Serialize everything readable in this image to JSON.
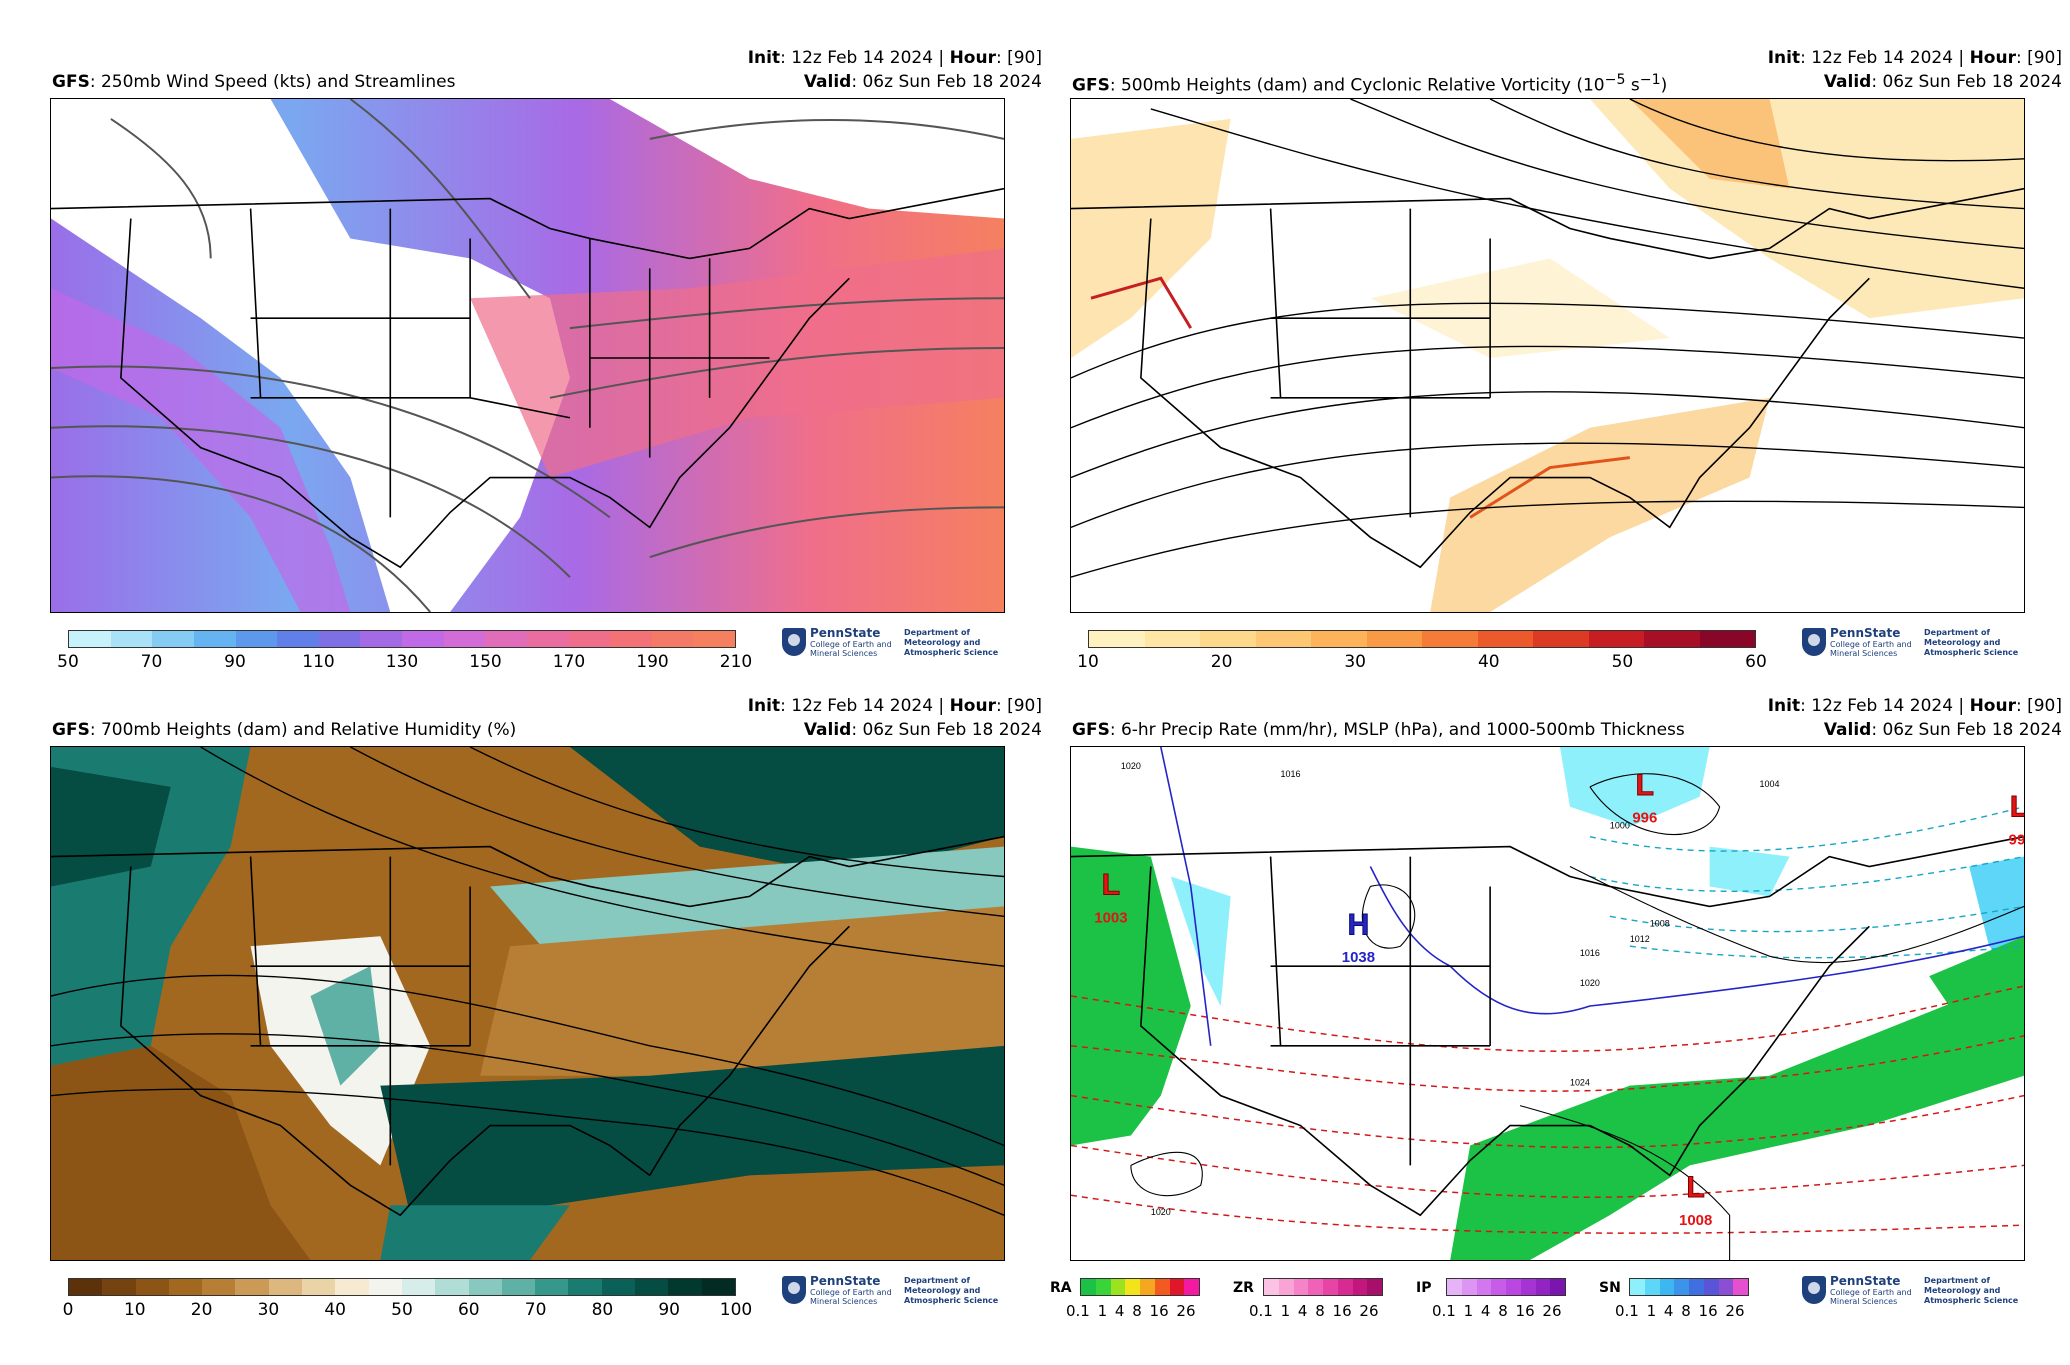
{
  "panels": [
    {
      "init_label": "Init",
      "init_value": ": 12z Feb 14 2024 | ",
      "hour_label": "Hour",
      "hour_value": ": [90]",
      "model": "GFS",
      "title": ": 250mb Wind Speed (kts) and Streamlines",
      "valid_label": "Valid",
      "valid_value": ": 06z Sun Feb 18 2024",
      "colorbar": {
        "colors": [
          "#c8f2fb",
          "#a8e2f8",
          "#84ccf4",
          "#65b3f0",
          "#5c98ec",
          "#607fe8",
          "#7f6fe4",
          "#a36ae6",
          "#c06ae8",
          "#d46cd8",
          "#e06cba",
          "#ea6ca0",
          "#f06e8a",
          "#f47276",
          "#f57a66",
          "#f58060"
        ],
        "ticks": [
          "50",
          "70",
          "90",
          "110",
          "130",
          "150",
          "170",
          "190",
          "210"
        ]
      }
    },
    {
      "init_label": "Init",
      "init_value": ": 12z Feb 14 2024 | ",
      "hour_label": "Hour",
      "hour_value": ": [90]",
      "model": "GFS",
      "title": ": 500mb Heights (dam) and Cyclonic Relative Vorticity (10",
      "title_sup1": "−5",
      "title_mid": " s",
      "title_sup2": "−1",
      "title_end": ")",
      "valid_label": "Valid",
      "valid_value": ": 06z Sun Feb 18 2024",
      "colorbar": {
        "colors": [
          "#fff2c0",
          "#ffe6a4",
          "#fed98c",
          "#fdc774",
          "#fcb35a",
          "#fb9a44",
          "#f67b36",
          "#ec5a2c",
          "#dd3a24",
          "#c61e22",
          "#a60f26",
          "#8a0628"
        ],
        "ticks": [
          "10",
          "20",
          "30",
          "40",
          "50",
          "60"
        ]
      }
    },
    {
      "init_label": "Init",
      "init_value": ": 12z Feb 14 2024 | ",
      "hour_label": "Hour",
      "hour_value": ": [90]",
      "model": "GFS",
      "title": ": 700mb Heights (dam) and Relative Humidity (%)",
      "valid_label": "Valid",
      "valid_value": ": 06z Sun Feb 18 2024",
      "colorbar": {
        "colors": [
          "#5b3209",
          "#75430f",
          "#8c5516",
          "#a3681f",
          "#b77f35",
          "#cb9a56",
          "#dcb87e",
          "#ead3a6",
          "#f6ead2",
          "#f4f4ef",
          "#d7ede9",
          "#b0ddd5",
          "#87c9bf",
          "#5fb1a6",
          "#36978b",
          "#1a7b70",
          "#0b6157",
          "#054c42",
          "#02392f",
          "#012b23"
        ],
        "ticks": [
          "0",
          "10",
          "20",
          "30",
          "40",
          "50",
          "60",
          "70",
          "80",
          "90",
          "100"
        ]
      }
    },
    {
      "init_label": "Init",
      "init_value": ": 12z Feb 14 2024 | ",
      "hour_label": "Hour",
      "hour_value": ": [90]",
      "model": "GFS",
      "title": ": 6-hr Precip Rate (mm/hr), MSLP (hPa), and 1000-500mb Thickness",
      "valid_label": "Valid",
      "valid_value": ": 06z Sun Feb 18 2024",
      "precip_legends": [
        {
          "code": "RA",
          "colors": [
            "#1bc245",
            "#3ad43a",
            "#9be21f",
            "#f3e31a",
            "#f5a81f",
            "#f35a22",
            "#e0172a",
            "#f21aa1"
          ]
        },
        {
          "code": "ZR",
          "colors": [
            "#fbc2e3",
            "#f8a4d6",
            "#f583c7",
            "#f062b7",
            "#e844a6",
            "#d82a93",
            "#c2187e",
            "#a80f6b"
          ]
        },
        {
          "code": "IP",
          "colors": [
            "#e6b3f7",
            "#dd95f4",
            "#d277ef",
            "#c75ce8",
            "#b947e0",
            "#a634d4",
            "#9124c3",
            "#7a16ae"
          ]
        },
        {
          "code": "SN",
          "colors": [
            "#8ef0fb",
            "#5ed6f7",
            "#3cb7f2",
            "#3c93ea",
            "#3f6fe1",
            "#5a55d8",
            "#8b4fd3",
            "#e54fd0"
          ]
        }
      ],
      "precip_ticks": "0.1 1 4 8 16 26",
      "pressure_labels": [
        {
          "letter": "L",
          "value": "996"
        },
        {
          "letter": "L",
          "value": "1003"
        },
        {
          "letter": "H",
          "value": "1038"
        },
        {
          "letter": "L",
          "value": "1008"
        },
        {
          "letter": "L",
          "value": "99"
        }
      ],
      "isobar_labels": [
        "1020",
        "1016",
        "1008",
        "1004",
        "1000",
        "1024",
        "1012",
        "1016",
        "1020",
        "1020"
      ]
    }
  ],
  "logo": {
    "name": "PennState",
    "college": "College of Earth and Mineral Sciences",
    "dept": "Department of Meteorology and Atmospheric Science"
  }
}
